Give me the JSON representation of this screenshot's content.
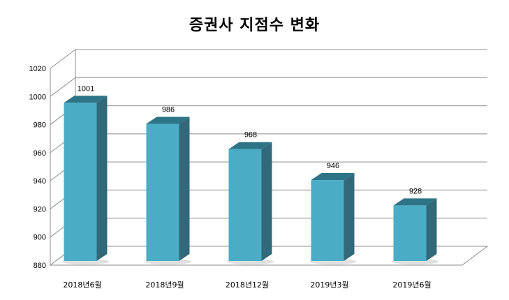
{
  "chart_data": {
    "type": "bar",
    "title": "증권사 지점수 변화",
    "categories": [
      "2018년6월",
      "2018년9월",
      "2018년12월",
      "2019년3월",
      "2019년6월"
    ],
    "values": [
      1001,
      986,
      968,
      946,
      928
    ],
    "ylim": [
      880,
      1020
    ],
    "yticks": [
      880,
      900,
      920,
      940,
      960,
      980,
      1000,
      1020
    ],
    "grid": true,
    "legend": "none",
    "colors": {
      "front": "#4BACC6",
      "side": "#31697A",
      "top": "#2E7487"
    }
  }
}
